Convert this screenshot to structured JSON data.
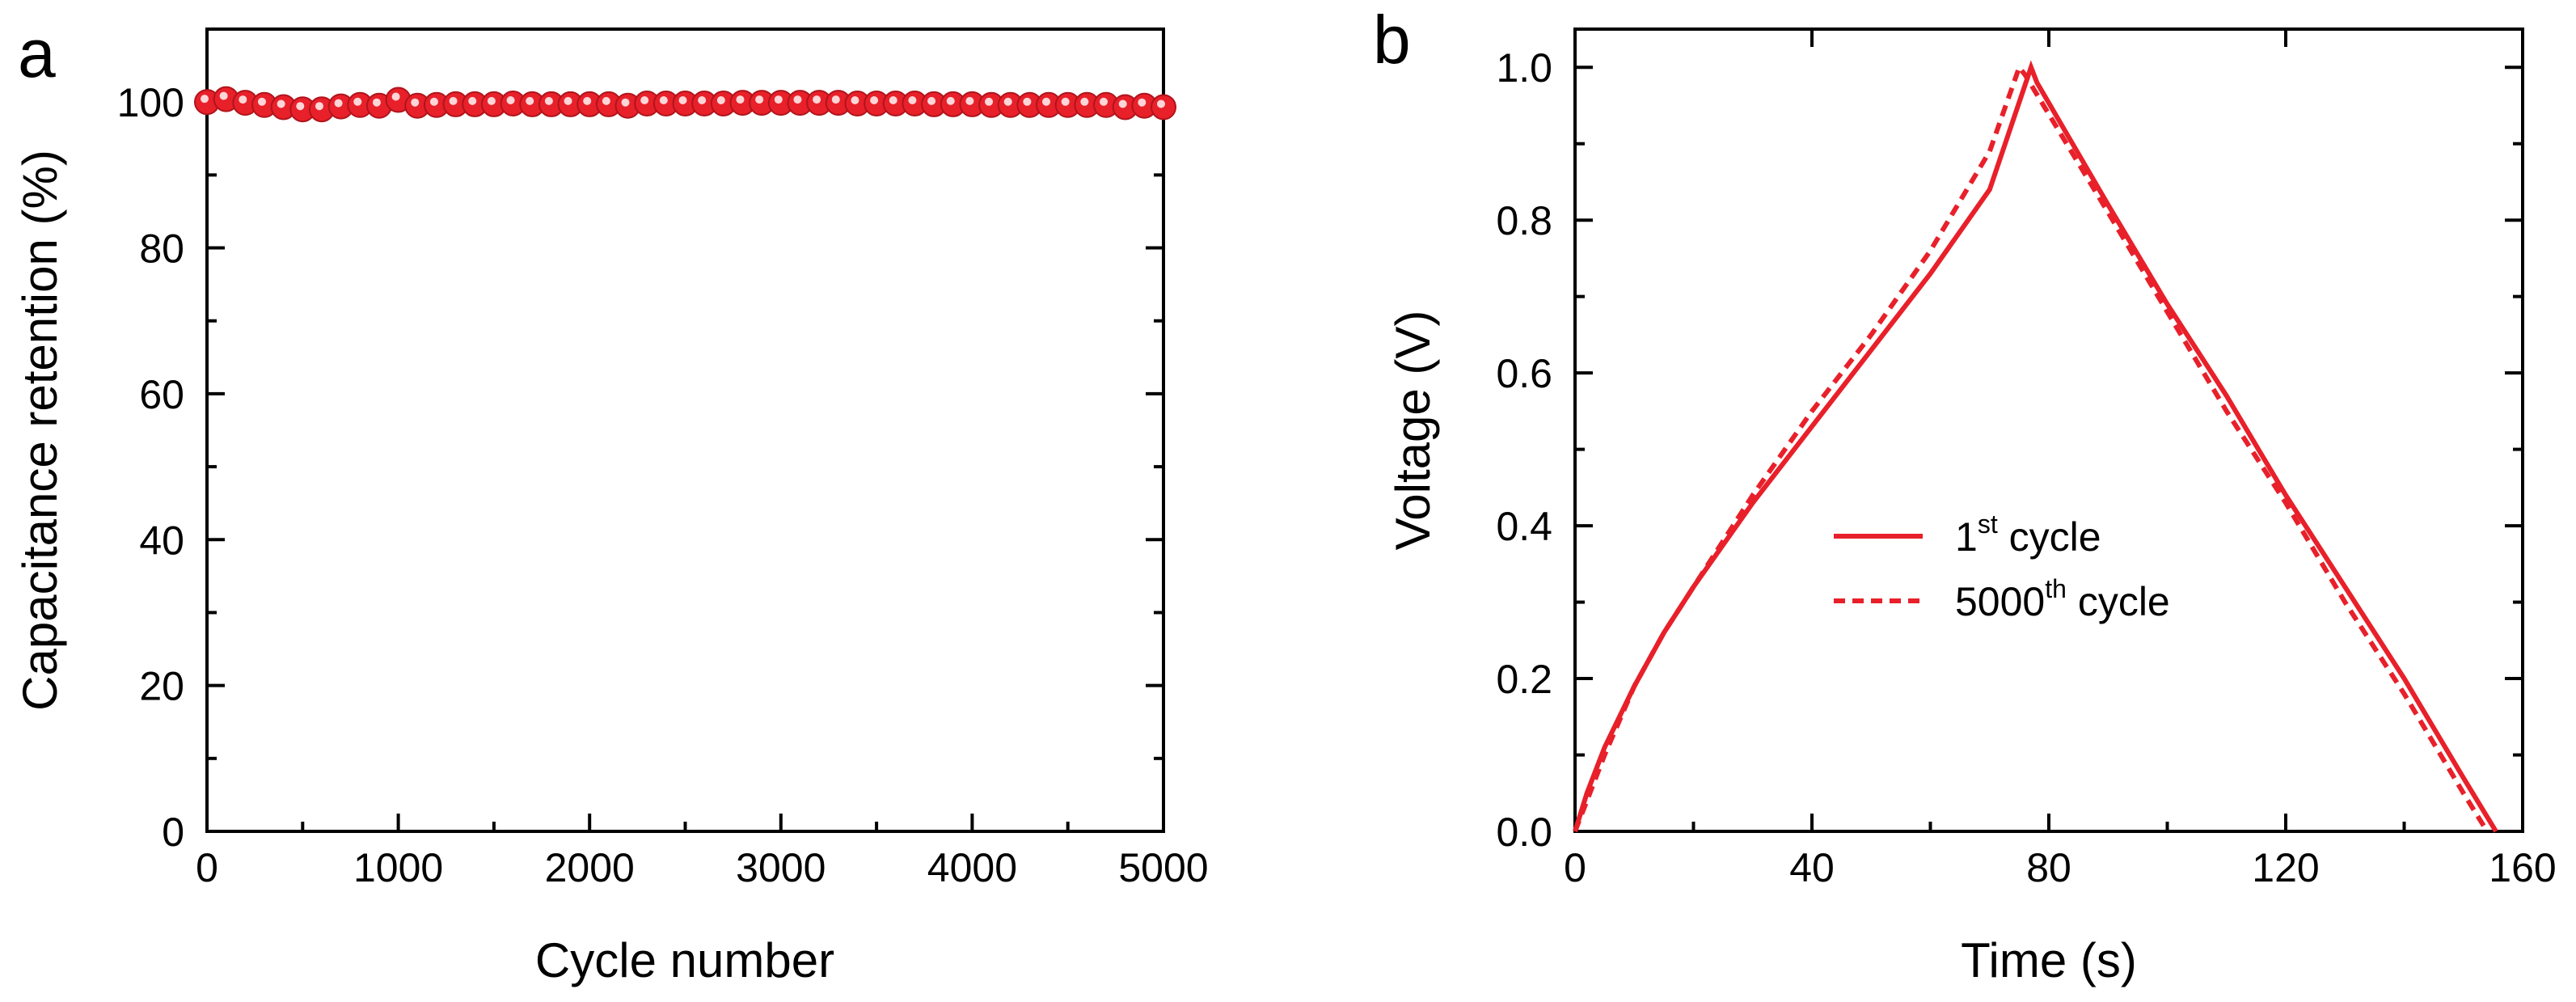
{
  "chart_data": [
    {
      "panel_label": "a",
      "type": "scatter",
      "title": "",
      "xlabel": "Cycle number",
      "ylabel": "Capacitance retention (%)",
      "xlim": [
        0,
        5000
      ],
      "ylim": [
        0,
        110
      ],
      "xticks": [
        0,
        1000,
        2000,
        3000,
        4000,
        5000
      ],
      "yticks": [
        0,
        20,
        40,
        60,
        80,
        100
      ],
      "grid": false,
      "series": [
        {
          "name": "Capacitance retention",
          "color": "#e8202a",
          "x": [
            0,
            100,
            200,
            300,
            400,
            500,
            600,
            700,
            800,
            900,
            1000,
            1100,
            1200,
            1300,
            1400,
            1500,
            1600,
            1700,
            1800,
            1900,
            2000,
            2100,
            2200,
            2300,
            2400,
            2500,
            2600,
            2700,
            2800,
            2900,
            3000,
            3100,
            3200,
            3300,
            3400,
            3500,
            3600,
            3700,
            3800,
            3900,
            4000,
            4100,
            4200,
            4300,
            4400,
            4500,
            4600,
            4700,
            4800,
            4900,
            5000
          ],
          "y": [
            100,
            100.4,
            99.9,
            99.6,
            99.3,
            99.0,
            99.0,
            99.4,
            99.6,
            99.5,
            100.3,
            99.5,
            99.6,
            99.7,
            99.7,
            99.7,
            99.8,
            99.7,
            99.7,
            99.7,
            99.7,
            99.7,
            99.5,
            99.8,
            99.8,
            99.8,
            99.8,
            99.8,
            99.9,
            99.9,
            99.9,
            99.9,
            99.9,
            99.9,
            99.8,
            99.8,
            99.8,
            99.8,
            99.7,
            99.7,
            99.7,
            99.6,
            99.6,
            99.6,
            99.6,
            99.6,
            99.6,
            99.6,
            99.3,
            99.5,
            99.3
          ]
        }
      ]
    },
    {
      "panel_label": "b",
      "type": "line",
      "title": "",
      "xlabel": "Time (s)",
      "ylabel": "Voltage (V)",
      "xlim": [
        0,
        160
      ],
      "ylim": [
        0,
        1.05
      ],
      "xticks": [
        0,
        40,
        80,
        120,
        160
      ],
      "yticks": [
        0.0,
        0.2,
        0.4,
        0.6,
        0.8,
        1.0
      ],
      "ytick_labels": [
        "0.0",
        "0.2",
        "0.4",
        "0.6",
        "0.8",
        "1.0"
      ],
      "grid": false,
      "legend": {
        "position": "center",
        "entries": [
          {
            "base": "1",
            "sup": "st",
            "rest": " cycle"
          },
          {
            "base": "5000",
            "sup": "th",
            "rest": " cycle"
          }
        ]
      },
      "series": [
        {
          "name": "1st cycle",
          "style": "solid",
          "color": "#e8202a",
          "x": [
            0,
            2,
            5,
            10,
            15,
            20,
            30,
            40,
            50,
            60,
            70,
            77,
            78,
            90,
            100,
            110,
            120,
            130,
            140,
            150,
            155.5
          ],
          "y": [
            0,
            0.05,
            0.11,
            0.19,
            0.26,
            0.32,
            0.43,
            0.53,
            0.63,
            0.73,
            0.84,
            1.0,
            0.98,
            0.82,
            0.69,
            0.57,
            0.44,
            0.32,
            0.2,
            0.07,
            0.0
          ]
        },
        {
          "name": "5000th cycle",
          "style": "dashed",
          "color": "#e8202a",
          "x": [
            0,
            2,
            5,
            10,
            15,
            20,
            30,
            40,
            50,
            60,
            70,
            75,
            76,
            90,
            100,
            110,
            120,
            130,
            140,
            150,
            154
          ],
          "y": [
            0,
            0.04,
            0.1,
            0.19,
            0.26,
            0.32,
            0.44,
            0.55,
            0.65,
            0.76,
            0.89,
            1.0,
            0.99,
            0.81,
            0.68,
            0.55,
            0.43,
            0.3,
            0.18,
            0.05,
            0.0
          ]
        }
      ]
    }
  ]
}
